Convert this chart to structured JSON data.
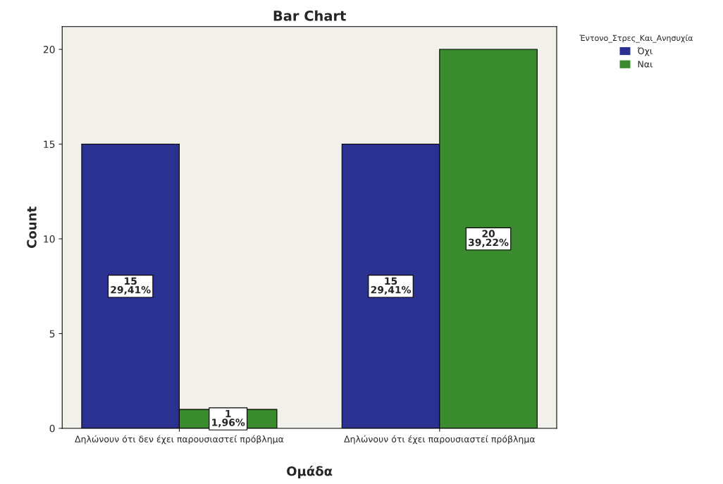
{
  "chart_data": {
    "type": "bar",
    "title": "Bar Chart",
    "xlabel": "Ομάδα",
    "ylabel": "Count",
    "legend_title": "Έντονο_Στρες_Και_Ανησυχία",
    "categories": [
      "Δηλώνουν ότι δεν έχει παρουσιαστεί πρόβλημα",
      "Δηλώνουν ότι έχει παρουσιαστεί πρόβλημα"
    ],
    "series": [
      {
        "name": "Όχι",
        "color": "#2b3190",
        "values": [
          15,
          15
        ],
        "value_labels": [
          "15\n29,41%",
          "15\n29,41%"
        ]
      },
      {
        "name": "Ναι",
        "color": "#3a8a2e",
        "values": [
          1,
          20
        ],
        "value_labels": [
          "1\n1,96%",
          "20\n39,22%"
        ]
      }
    ],
    "ylim": [
      0,
      21.2
    ],
    "yticks": [
      0,
      5,
      10,
      15,
      20
    ],
    "grid": false,
    "legend": "top right"
  }
}
